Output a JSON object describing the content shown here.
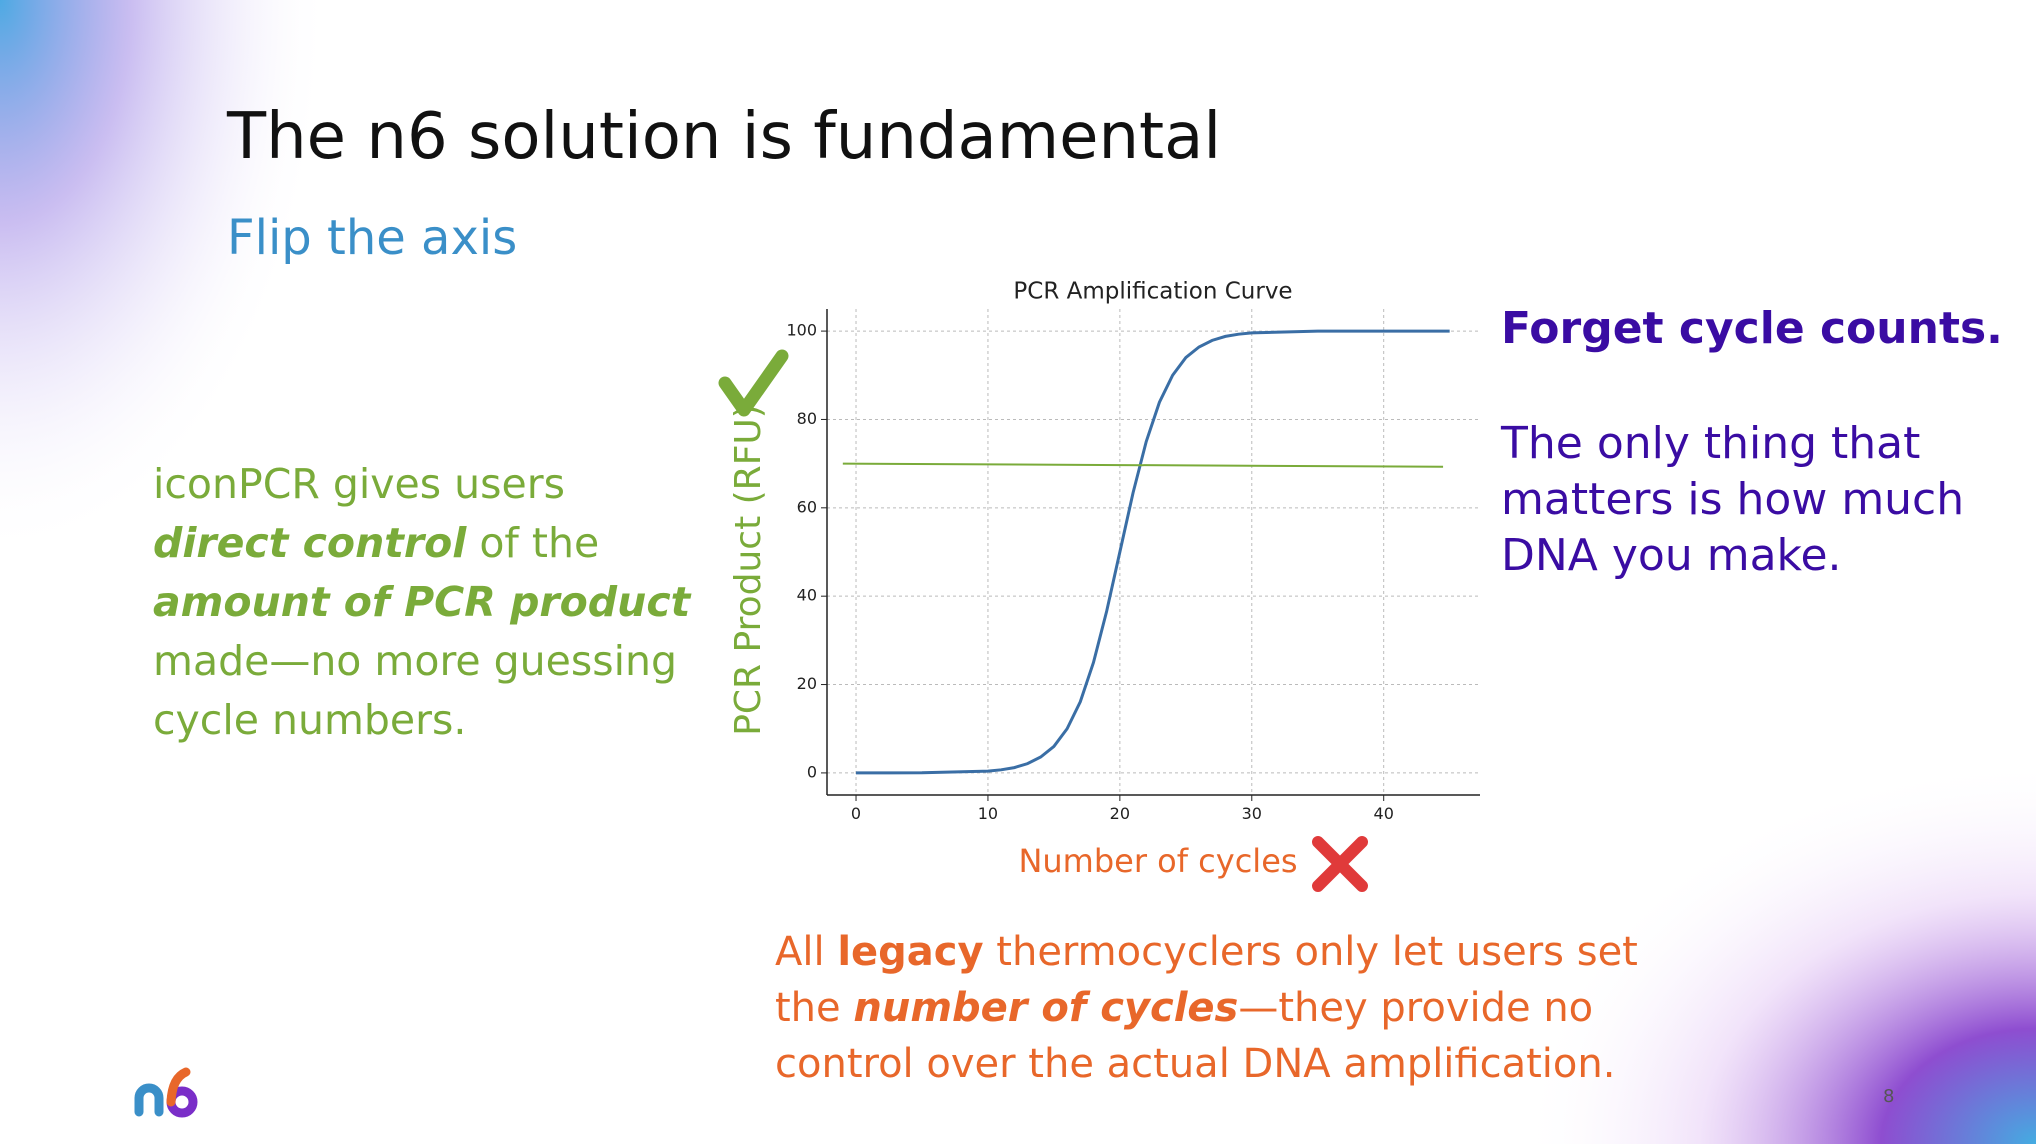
{
  "slide": {
    "title": "The n6 solution is fundamental",
    "subtitle": "Flip the axis",
    "left_text": [
      "iconPCR gives users ",
      "direct control",
      " of the ",
      "amount of PCR product",
      " made—no more guessing cycle numbers."
    ],
    "right_heading": "Forget cycle counts.",
    "right_text": "The only thing that matters is how much DNA you make.",
    "bottom_text": [
      "All ",
      "legacy",
      " thermocyclers only let users set the ",
      "number of cycles",
      "—they provide no control over the actual DNA amplification."
    ],
    "page_number": "8"
  },
  "chart_data": {
    "type": "line",
    "title": "PCR Amplification Curve",
    "x_label": "Number of cycles",
    "y_label": "PCR Product (RFU)",
    "x": [
      0,
      5,
      10,
      11,
      12,
      13,
      14,
      15,
      16,
      17,
      18,
      19,
      20,
      21,
      22,
      23,
      24,
      25,
      26,
      27,
      28,
      29,
      30,
      35,
      40,
      45
    ],
    "series": [
      {
        "color": "#3a6ea5",
        "values": [
          0,
          0.03,
          0.4,
          0.7,
          1.2,
          2.1,
          3.6,
          6,
          10,
          16.1,
          25,
          36.6,
          50,
          63.4,
          75,
          83.9,
          90,
          94,
          96.4,
          97.9,
          98.8,
          99.3,
          99.6,
          100,
          100,
          100
        ]
      },
      {
        "color": "#7aab3a",
        "x": [
          -1,
          44.5
        ],
        "values": [
          70,
          69.3
        ]
      }
    ],
    "xlim": [
      -2.2,
      47.3
    ],
    "ylim": [
      -5,
      105
    ],
    "xticks": [
      0,
      10,
      20,
      30,
      40
    ],
    "yticks": [
      0,
      20,
      40,
      60,
      80,
      100
    ],
    "grid": true
  }
}
